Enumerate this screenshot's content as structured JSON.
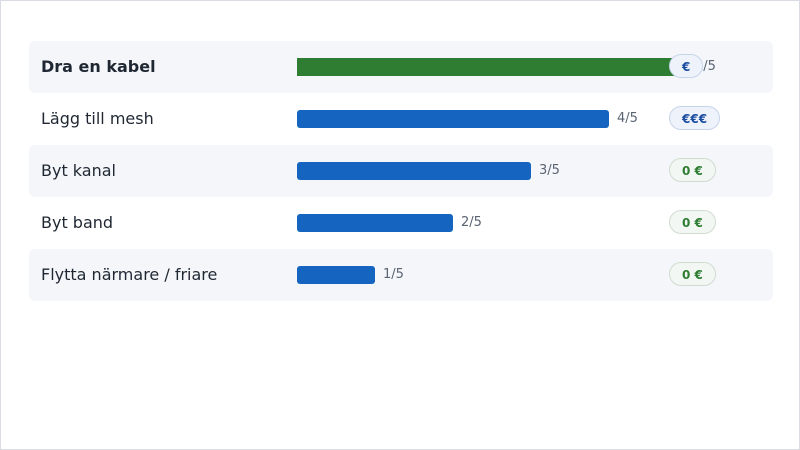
{
  "chart_data": {
    "type": "bar",
    "orientation": "horizontal",
    "xlim": [
      0,
      5
    ],
    "categories": [
      "Dra en kabel",
      "Lägg till mesh",
      "Byt kanal",
      "Byt band",
      "Flytta närmare / friare"
    ],
    "values": [
      5,
      4,
      3,
      2,
      1
    ],
    "score_labels": [
      "5/5",
      "4/5",
      "3/5",
      "2/5",
      "1/5"
    ],
    "cost_labels": [
      "€",
      "€€€",
      "0 €",
      "0 €",
      "0 €"
    ],
    "highlighted_category": "Dra en kabel",
    "colors": {
      "bar": "#1565c0",
      "highlight_bar": "#2e7d32",
      "paid_badge_text": "#1d4fa0",
      "free_badge_text": "#2e7d32"
    }
  }
}
